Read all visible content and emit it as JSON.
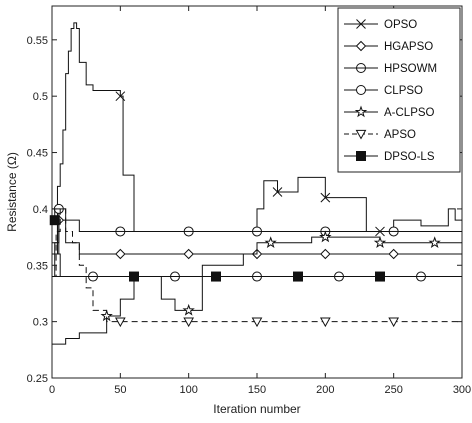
{
  "chart_data": {
    "type": "line",
    "xlabel": "Iteration number",
    "ylabel": "Resistance (Ω)",
    "xlim": [
      0,
      300
    ],
    "ylim": [
      0.25,
      0.58
    ],
    "xticks": [
      "0",
      "50",
      "100",
      "150",
      "200",
      "250",
      "300"
    ],
    "yticks": [
      "0.25",
      "0.3",
      "0.35",
      "0.4",
      "0.45",
      "0.5",
      "0.55"
    ],
    "grid": false,
    "legend_position": "top-right",
    "series": [
      {
        "name": "OPSO",
        "marker": "x",
        "dash": "solid",
        "x": [
          0,
          2,
          4,
          6,
          8,
          10,
          12,
          14,
          16,
          18,
          20,
          25,
          30,
          40,
          50,
          52,
          60,
          80,
          100,
          120,
          140,
          150,
          155,
          160,
          165,
          175,
          180,
          190,
          200,
          205,
          215,
          230,
          240,
          250,
          255,
          270,
          280,
          290,
          295,
          300
        ],
        "y": [
          0.34,
          0.37,
          0.42,
          0.44,
          0.47,
          0.52,
          0.54,
          0.56,
          0.565,
          0.56,
          0.53,
          0.51,
          0.505,
          0.505,
          0.5,
          0.43,
          0.38,
          0.38,
          0.38,
          0.38,
          0.38,
          0.4,
          0.425,
          0.425,
          0.415,
          0.415,
          0.428,
          0.428,
          0.41,
          0.41,
          0.41,
          0.38,
          0.38,
          0.39,
          0.39,
          0.385,
          0.385,
          0.4,
          0.39,
          0.39
        ]
      },
      {
        "name": "HGAPSO",
        "marker": "diamond",
        "dash": "solid",
        "x": [
          0,
          5,
          10,
          20,
          30,
          40,
          50,
          60,
          80,
          100,
          120,
          150,
          200,
          250,
          300
        ],
        "y": [
          0.36,
          0.39,
          0.37,
          0.36,
          0.36,
          0.36,
          0.36,
          0.36,
          0.36,
          0.36,
          0.36,
          0.36,
          0.36,
          0.36,
          0.36
        ]
      },
      {
        "name": "HPSOWM",
        "marker": "circle-dot",
        "dash": "solid",
        "x": [
          0,
          5,
          10,
          20,
          30,
          40,
          50,
          60,
          80,
          100,
          120,
          150,
          200,
          250,
          300
        ],
        "y": [
          0.37,
          0.4,
          0.39,
          0.38,
          0.38,
          0.38,
          0.38,
          0.38,
          0.38,
          0.38,
          0.38,
          0.38,
          0.38,
          0.38,
          0.38
        ]
      },
      {
        "name": "CLPSO",
        "marker": "circle",
        "dash": "solid",
        "x": [
          0,
          5,
          10,
          20,
          30,
          40,
          50,
          60,
          80,
          100,
          120,
          150,
          200,
          250,
          300
        ],
        "y": [
          0.34,
          0.34,
          0.34,
          0.34,
          0.34,
          0.34,
          0.34,
          0.34,
          0.34,
          0.34,
          0.34,
          0.34,
          0.34,
          0.34,
          0.34
        ]
      },
      {
        "name": "A-CLPSO",
        "marker": "star",
        "dash": "solid",
        "x": [
          0,
          5,
          10,
          15,
          20,
          30,
          40,
          50,
          60,
          70,
          80,
          90,
          100,
          110,
          130,
          140,
          150,
          160,
          170,
          180,
          190,
          200,
          210,
          220,
          230,
          240,
          250,
          270,
          300
        ],
        "y": [
          0.28,
          0.28,
          0.285,
          0.285,
          0.29,
          0.29,
          0.305,
          0.32,
          0.34,
          0.34,
          0.32,
          0.31,
          0.31,
          0.35,
          0.35,
          0.36,
          0.37,
          0.37,
          0.37,
          0.37,
          0.375,
          0.375,
          0.375,
          0.375,
          0.375,
          0.37,
          0.37,
          0.37,
          0.37
        ]
      },
      {
        "name": "APSO",
        "marker": "triangle-down",
        "dash": "dashed",
        "x": [
          0,
          3,
          6,
          10,
          15,
          20,
          25,
          30,
          40,
          50,
          100,
          150,
          200,
          250,
          300
        ],
        "y": [
          0.34,
          0.38,
          0.4,
          0.38,
          0.37,
          0.35,
          0.33,
          0.31,
          0.3,
          0.3,
          0.3,
          0.3,
          0.3,
          0.3,
          0.3
        ]
      },
      {
        "name": "DPSO-LS",
        "marker": "square-filled",
        "dash": "solid",
        "x": [
          0,
          2,
          4,
          6,
          10,
          20,
          30,
          40,
          50,
          60,
          80,
          100,
          120,
          150,
          200,
          250,
          300
        ],
        "y": [
          0.4,
          0.39,
          0.36,
          0.34,
          0.34,
          0.34,
          0.34,
          0.34,
          0.34,
          0.34,
          0.34,
          0.34,
          0.34,
          0.34,
          0.34,
          0.34,
          0.34
        ]
      }
    ]
  }
}
